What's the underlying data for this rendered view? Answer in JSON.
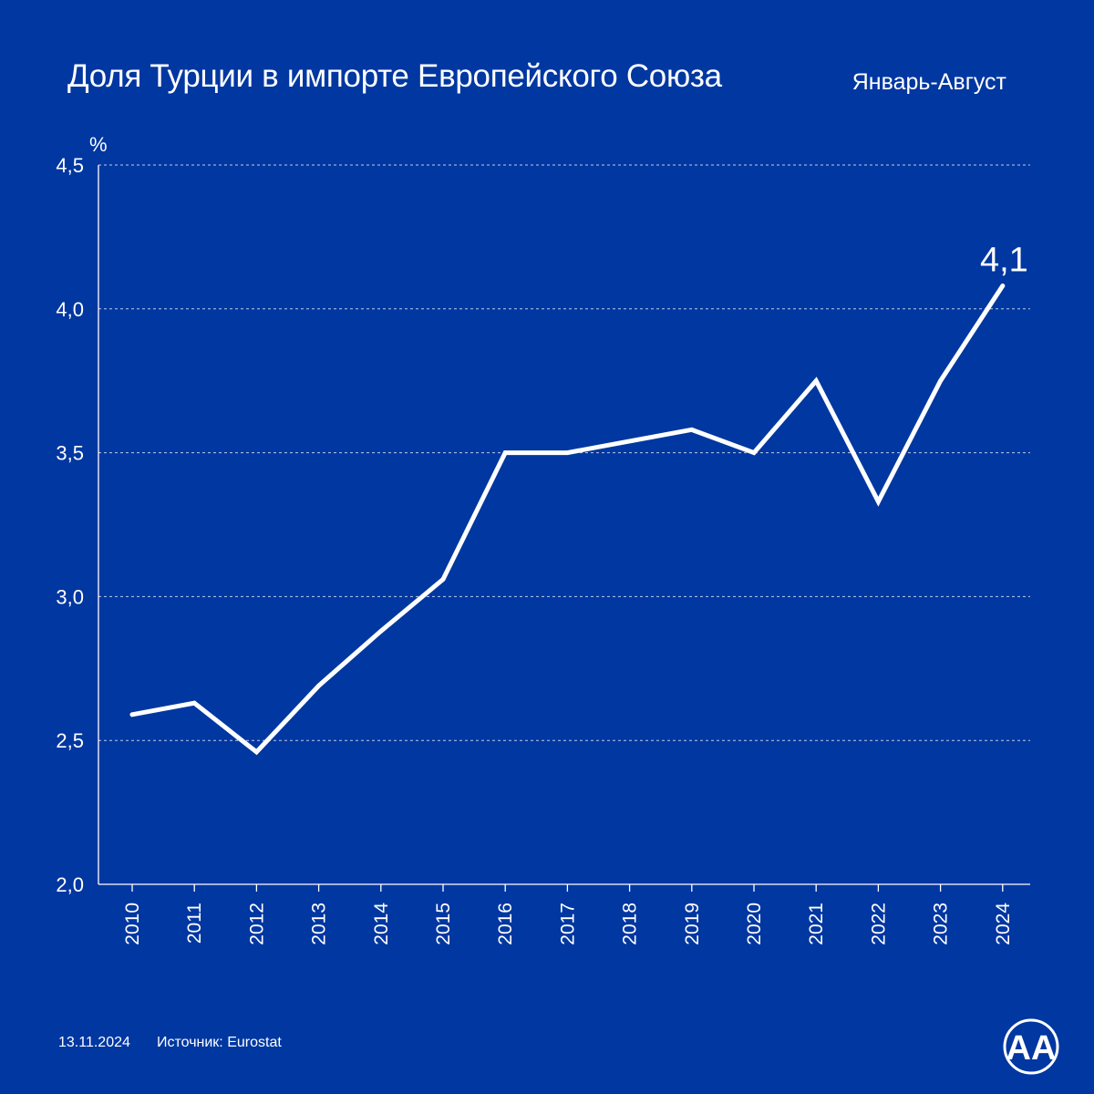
{
  "header": {
    "title": "Доля Турции в импорте Европейского Союза",
    "period": "Январь-Август"
  },
  "footer": {
    "date": "13.11.2024",
    "source": "Источник: Eurostat"
  },
  "logo": {
    "icon": "aa-logo-icon",
    "text": "AA"
  },
  "colors": {
    "background": "#0037a1",
    "line": "#ffffff",
    "grid": "#ffffff",
    "axis": "#ffffff"
  },
  "chart_data": {
    "type": "line",
    "title": "Доля Турции в импорте Европейского Союза",
    "subtitle": "Январь-Август",
    "xlabel": "",
    "ylabel": "%",
    "ylim": [
      2.0,
      4.5
    ],
    "yticks": [
      2.0,
      2.5,
      3.0,
      3.5,
      4.0,
      4.5
    ],
    "ytick_labels": [
      "2,0",
      "2,5",
      "3,0",
      "3,5",
      "4,0",
      "4,5"
    ],
    "grid": true,
    "categories": [
      "2010",
      "2011",
      "2012",
      "2013",
      "2014",
      "2015",
      "2016",
      "2017",
      "2018",
      "2019",
      "2020",
      "2021",
      "2022",
      "2023",
      "2024"
    ],
    "series": [
      {
        "values": [
          2.59,
          2.63,
          2.46,
          2.69,
          2.88,
          3.06,
          3.5,
          3.5,
          3.54,
          3.58,
          3.5,
          3.75,
          3.33,
          3.75,
          4.08
        ]
      }
    ],
    "annotations": [
      {
        "category": "2024",
        "text": "4,1"
      }
    ]
  }
}
